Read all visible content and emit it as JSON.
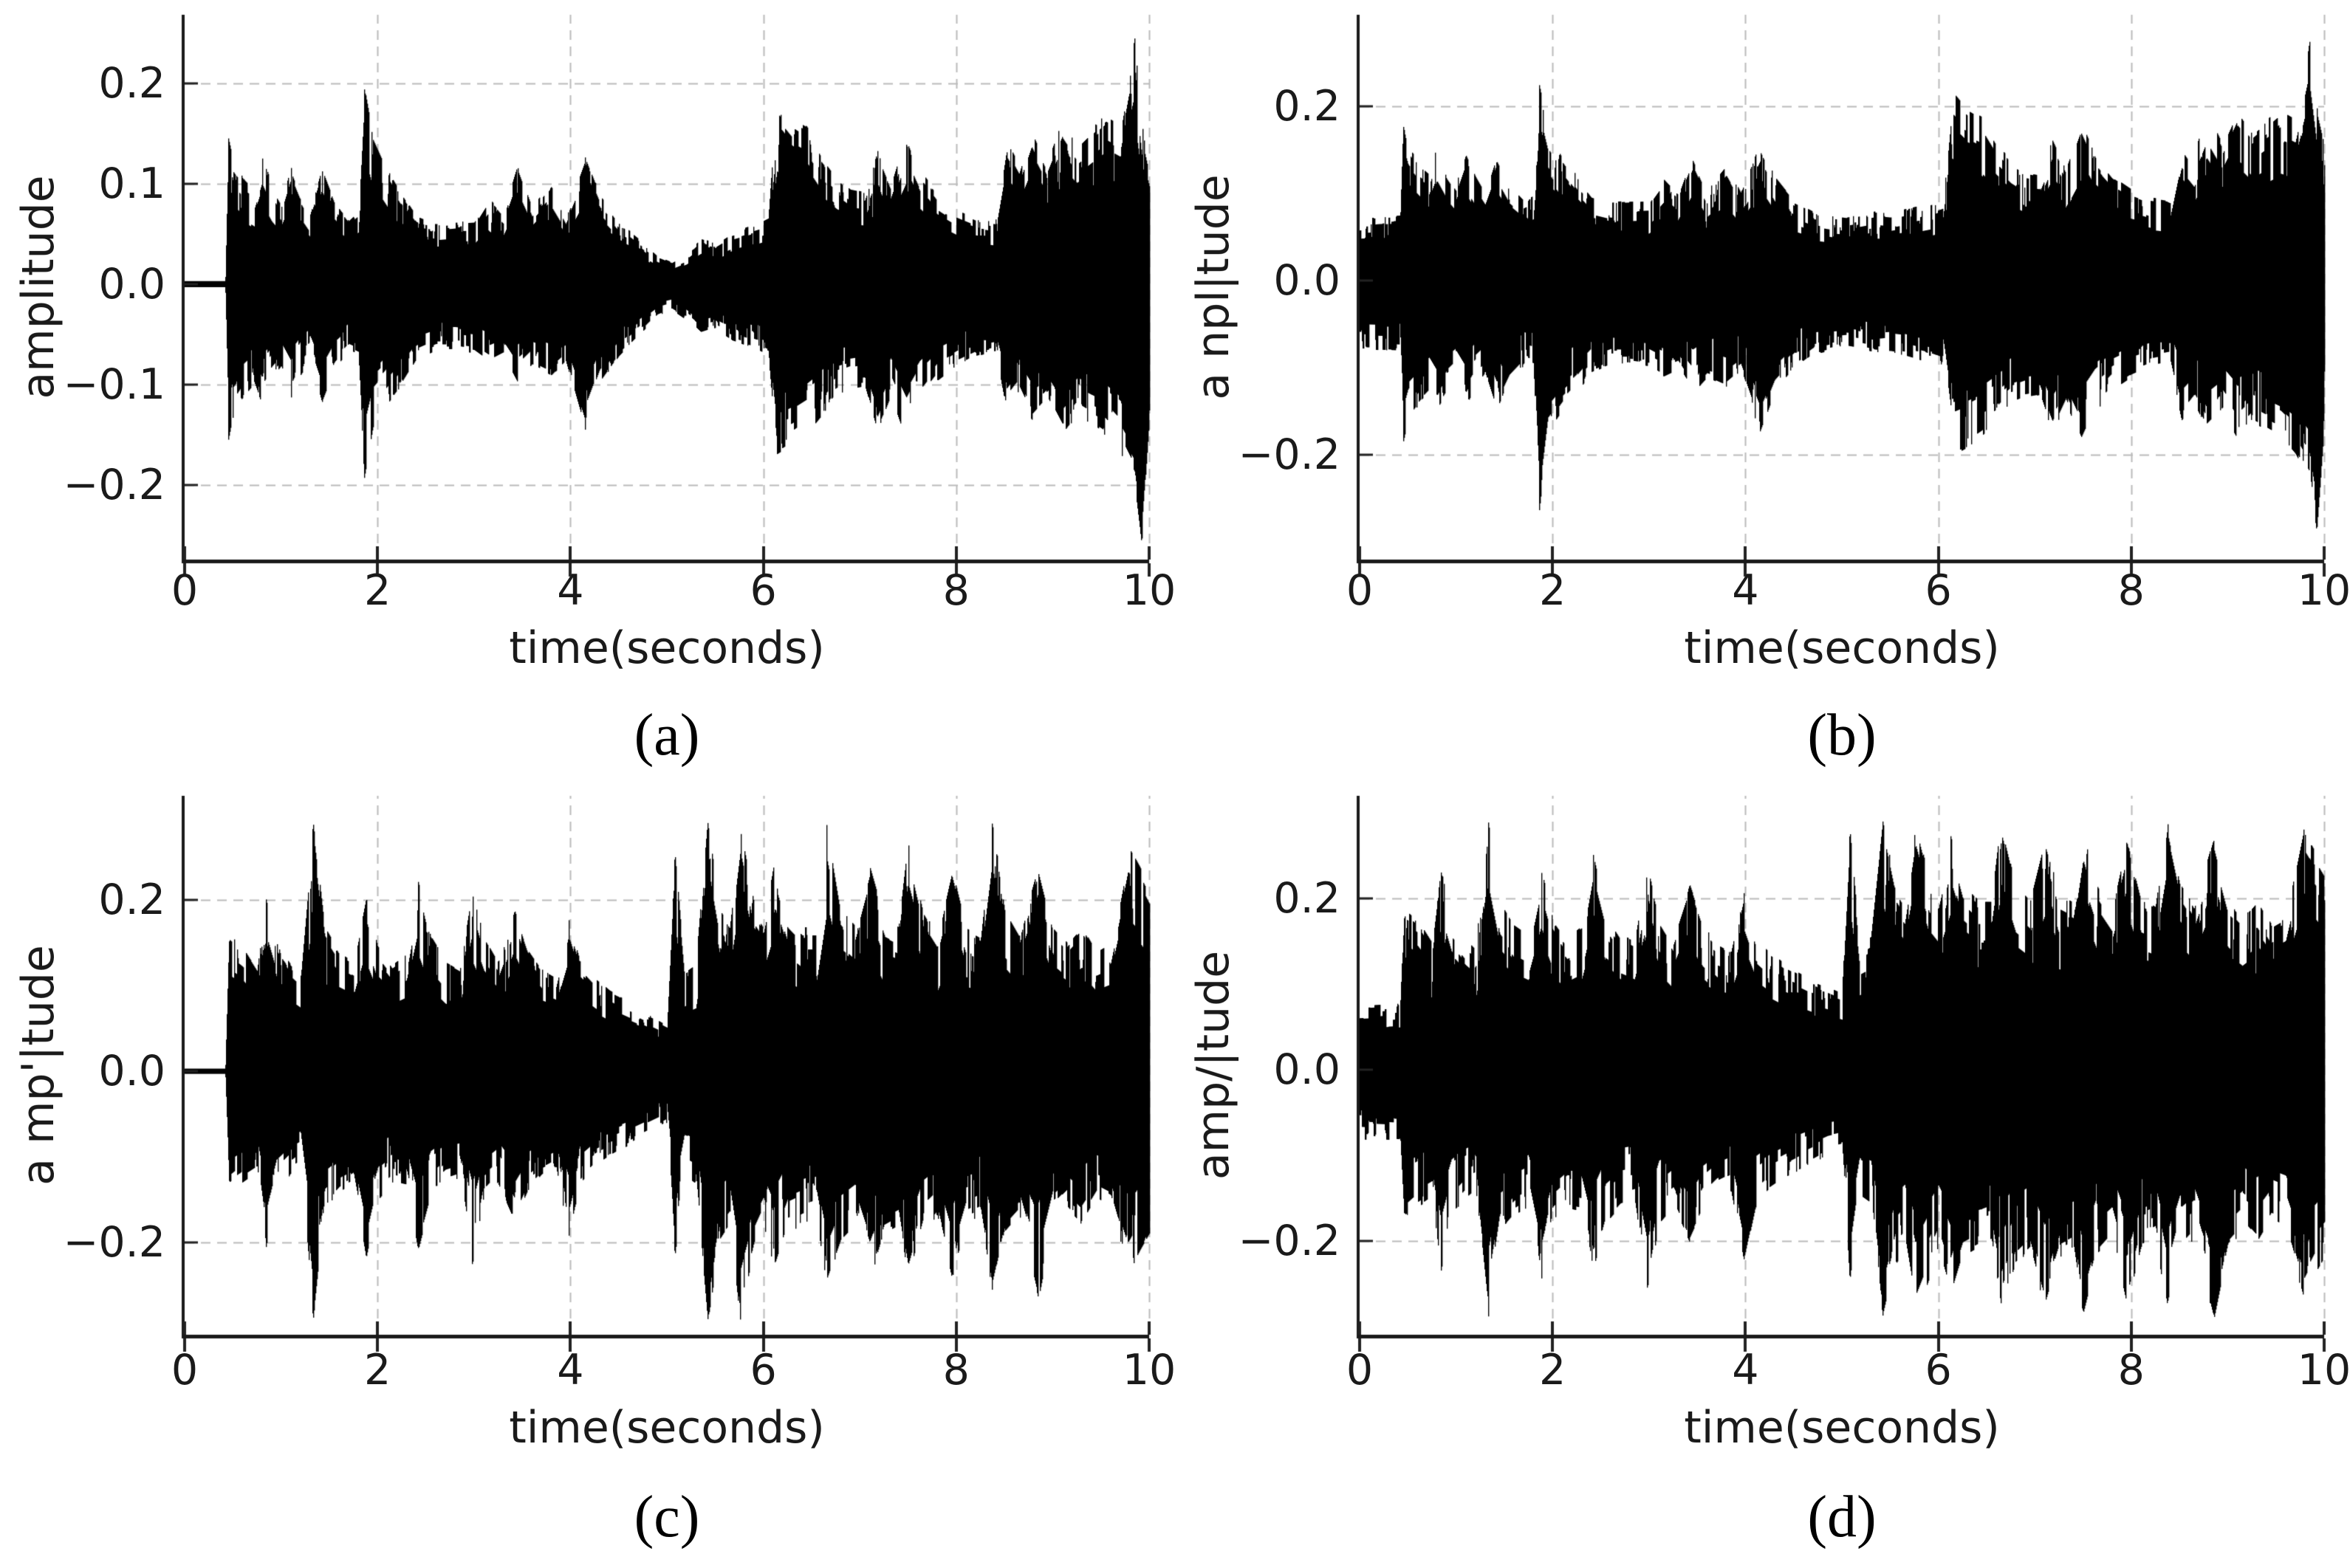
{
  "figure": {
    "background": "#ffffff",
    "rows": 2,
    "cols": 2,
    "description": "2x2 grid of audio waveform plots"
  },
  "chart_data": [
    {
      "id": "a",
      "type": "area",
      "waveform": true,
      "caption": "(a)",
      "xlabel": "time(seconds)",
      "ylabel": "amplitude",
      "xlim": [
        0,
        10
      ],
      "ylim": [
        -0.274,
        0.268
      ],
      "xticks": {
        "values": [
          0,
          2,
          4,
          6,
          8,
          10
        ],
        "labels": [
          "0",
          "2",
          "4",
          "6",
          "8",
          "10"
        ]
      },
      "yticks": {
        "values": [
          0.2,
          0.1,
          0.0,
          -0.1,
          -0.2
        ],
        "labels": [
          "0.2",
          "0.1",
          "0.0",
          "−0.1",
          "−0.2"
        ]
      },
      "grid": true,
      "legend": "none",
      "line_color": "#000000",
      "grid_color": "#bbbbbb",
      "envelope": {
        "t": [
          0,
          0.42,
          0.45,
          0.5,
          0.62,
          0.72,
          0.8,
          0.9,
          1.0,
          1.1,
          1.2,
          1.3,
          1.42,
          1.55,
          1.7,
          1.8,
          1.86,
          1.95,
          2.1,
          2.25,
          2.4,
          2.6,
          2.8,
          3.0,
          3.15,
          3.3,
          3.45,
          3.6,
          3.8,
          3.95,
          4.15,
          4.3,
          4.5,
          4.7,
          4.9,
          5.05,
          5.2,
          5.35,
          5.5,
          5.65,
          5.8,
          5.95,
          6.05,
          6.14,
          6.3,
          6.45,
          6.6,
          6.75,
          6.9,
          7.05,
          7.18,
          7.32,
          7.48,
          7.62,
          7.8,
          8.0,
          8.2,
          8.4,
          8.52,
          8.65,
          8.78,
          8.95,
          9.1,
          9.25,
          9.4,
          9.55,
          9.7,
          9.85,
          9.92,
          10
        ],
        "hi": [
          0.003,
          0.003,
          0.148,
          0.125,
          0.105,
          0.095,
          0.128,
          0.1,
          0.082,
          0.118,
          0.092,
          0.072,
          0.115,
          0.082,
          0.063,
          0.072,
          0.197,
          0.148,
          0.115,
          0.09,
          0.068,
          0.06,
          0.062,
          0.063,
          0.088,
          0.07,
          0.118,
          0.077,
          0.105,
          0.072,
          0.128,
          0.09,
          0.062,
          0.046,
          0.028,
          0.022,
          0.031,
          0.046,
          0.041,
          0.051,
          0.056,
          0.061,
          0.066,
          0.19,
          0.168,
          0.158,
          0.128,
          0.108,
          0.095,
          0.092,
          0.135,
          0.1,
          0.152,
          0.115,
          0.09,
          0.075,
          0.066,
          0.062,
          0.145,
          0.12,
          0.165,
          0.125,
          0.165,
          0.14,
          0.155,
          0.17,
          0.16,
          0.25,
          0.17,
          0.13
        ],
        "lo": [
          0.003,
          0.003,
          0.158,
          0.132,
          0.112,
          0.1,
          0.122,
          0.102,
          0.088,
          0.115,
          0.092,
          0.077,
          0.12,
          0.087,
          0.067,
          0.072,
          0.196,
          0.145,
          0.12,
          0.1,
          0.076,
          0.066,
          0.066,
          0.069,
          0.08,
          0.072,
          0.1,
          0.082,
          0.092,
          0.077,
          0.147,
          0.1,
          0.072,
          0.052,
          0.032,
          0.026,
          0.036,
          0.051,
          0.046,
          0.056,
          0.061,
          0.066,
          0.071,
          0.172,
          0.162,
          0.15,
          0.132,
          0.112,
          0.105,
          0.102,
          0.147,
          0.112,
          0.157,
          0.122,
          0.097,
          0.082,
          0.072,
          0.067,
          0.132,
          0.112,
          0.142,
          0.122,
          0.152,
          0.132,
          0.142,
          0.152,
          0.172,
          0.205,
          0.262,
          0.142
        ]
      }
    },
    {
      "id": "b",
      "type": "area",
      "waveform": true,
      "caption": "(b)",
      "xlabel": "time(seconds)",
      "ylabel": "a npl|tude",
      "xlim": [
        0,
        10
      ],
      "ylim": [
        -0.32,
        0.305
      ],
      "xticks": {
        "values": [
          0,
          2,
          4,
          6,
          8,
          10
        ],
        "labels": [
          "0",
          "2",
          "4",
          "6",
          "8",
          "10"
        ]
      },
      "yticks": {
        "values": [
          0.2,
          0.0,
          -0.2
        ],
        "labels": [
          "0.2",
          "0.0",
          "−0.2"
        ]
      },
      "grid": true,
      "legend": "none",
      "line_color": "#000000",
      "grid_color": "#bbbbbb",
      "envelope": {
        "t": [
          0,
          0.42,
          0.45,
          0.5,
          0.62,
          0.72,
          0.8,
          0.9,
          1.0,
          1.1,
          1.2,
          1.3,
          1.42,
          1.55,
          1.7,
          1.8,
          1.86,
          1.95,
          2.1,
          2.25,
          2.4,
          2.6,
          2.8,
          3.0,
          3.15,
          3.3,
          3.45,
          3.6,
          3.8,
          3.95,
          4.15,
          4.3,
          4.5,
          4.7,
          4.9,
          5.05,
          5.2,
          5.35,
          5.5,
          5.65,
          5.8,
          5.95,
          6.05,
          6.14,
          6.3,
          6.45,
          6.6,
          6.75,
          6.9,
          7.05,
          7.18,
          7.32,
          7.48,
          7.62,
          7.8,
          8.0,
          8.2,
          8.4,
          8.52,
          8.65,
          8.78,
          8.95,
          9.1,
          9.25,
          9.4,
          9.55,
          9.7,
          9.85,
          9.92,
          10
        ],
        "hi": [
          0.072,
          0.075,
          0.178,
          0.155,
          0.135,
          0.125,
          0.158,
          0.13,
          0.112,
          0.148,
          0.122,
          0.102,
          0.145,
          0.112,
          0.094,
          0.1,
          0.228,
          0.178,
          0.145,
          0.12,
          0.098,
          0.091,
          0.092,
          0.093,
          0.118,
          0.1,
          0.148,
          0.107,
          0.135,
          0.102,
          0.158,
          0.12,
          0.092,
          0.08,
          0.075,
          0.073,
          0.076,
          0.08,
          0.078,
          0.082,
          0.086,
          0.091,
          0.096,
          0.22,
          0.198,
          0.188,
          0.158,
          0.138,
          0.125,
          0.122,
          0.165,
          0.13,
          0.182,
          0.145,
          0.12,
          0.105,
          0.096,
          0.092,
          0.175,
          0.15,
          0.195,
          0.155,
          0.195,
          0.17,
          0.185,
          0.2,
          0.19,
          0.28,
          0.2,
          0.16
        ],
        "lo": [
          0.08,
          0.082,
          0.188,
          0.162,
          0.142,
          0.13,
          0.152,
          0.132,
          0.118,
          0.145,
          0.122,
          0.107,
          0.15,
          0.117,
          0.098,
          0.102,
          0.268,
          0.175,
          0.15,
          0.13,
          0.106,
          0.096,
          0.096,
          0.099,
          0.11,
          0.102,
          0.13,
          0.112,
          0.122,
          0.107,
          0.177,
          0.13,
          0.102,
          0.085,
          0.08,
          0.078,
          0.081,
          0.085,
          0.083,
          0.086,
          0.091,
          0.096,
          0.101,
          0.202,
          0.192,
          0.18,
          0.162,
          0.142,
          0.135,
          0.132,
          0.177,
          0.142,
          0.187,
          0.152,
          0.127,
          0.112,
          0.102,
          0.097,
          0.162,
          0.142,
          0.172,
          0.152,
          0.182,
          0.162,
          0.172,
          0.182,
          0.202,
          0.235,
          0.292,
          0.172
        ]
      }
    },
    {
      "id": "c",
      "type": "area",
      "waveform": true,
      "caption": "(c)",
      "xlabel": "time(seconds)",
      "ylabel": "a mp'|tude",
      "xlim": [
        0,
        10
      ],
      "ylim": [
        -0.308,
        0.322
      ],
      "xticks": {
        "values": [
          0,
          2,
          4,
          6,
          8,
          10
        ],
        "labels": [
          "0",
          "2",
          "4",
          "6",
          "8",
          "10"
        ]
      },
      "yticks": {
        "values": [
          0.2,
          0.0,
          -0.2
        ],
        "labels": [
          "0.2",
          "0.0",
          "−0.2"
        ]
      },
      "grid": true,
      "legend": "none",
      "line_color": "#000000",
      "grid_color": "#bbbbbb",
      "envelope": {
        "t": [
          0,
          0.42,
          0.46,
          0.6,
          0.75,
          0.84,
          0.95,
          1.1,
          1.2,
          1.33,
          1.45,
          1.6,
          1.75,
          1.88,
          2.0,
          2.15,
          2.3,
          2.42,
          2.55,
          2.7,
          2.85,
          2.98,
          3.1,
          3.25,
          3.42,
          3.55,
          3.7,
          3.85,
          3.98,
          4.1,
          4.25,
          4.4,
          4.55,
          4.7,
          4.85,
          5.0,
          5.08,
          5.18,
          5.3,
          5.42,
          5.55,
          5.65,
          5.76,
          5.9,
          6.0,
          6.12,
          6.25,
          6.4,
          6.55,
          6.65,
          6.8,
          6.95,
          7.1,
          7.25,
          7.4,
          7.5,
          7.65,
          7.8,
          7.95,
          8.1,
          8.25,
          8.37,
          8.5,
          8.65,
          8.85,
          9.0,
          9.15,
          9.3,
          9.45,
          9.6,
          9.78,
          9.9,
          10
        ],
        "hi": [
          0.003,
          0.003,
          0.16,
          0.145,
          0.118,
          0.205,
          0.15,
          0.125,
          0.113,
          0.295,
          0.17,
          0.14,
          0.128,
          0.205,
          0.15,
          0.125,
          0.138,
          0.225,
          0.158,
          0.13,
          0.12,
          0.21,
          0.158,
          0.128,
          0.19,
          0.145,
          0.12,
          0.11,
          0.18,
          0.13,
          0.11,
          0.095,
          0.085,
          0.075,
          0.065,
          0.055,
          0.26,
          0.12,
          0.13,
          0.295,
          0.19,
          0.17,
          0.285,
          0.2,
          0.18,
          0.25,
          0.19,
          0.17,
          0.17,
          0.295,
          0.19,
          0.17,
          0.24,
          0.18,
          0.17,
          0.27,
          0.19,
          0.16,
          0.24,
          0.17,
          0.16,
          0.295,
          0.19,
          0.16,
          0.24,
          0.17,
          0.15,
          0.17,
          0.14,
          0.15,
          0.27,
          0.245,
          0.22
        ],
        "lo": [
          0.003,
          0.003,
          0.148,
          0.132,
          0.12,
          0.21,
          0.142,
          0.12,
          0.11,
          0.295,
          0.162,
          0.142,
          0.13,
          0.22,
          0.152,
          0.132,
          0.136,
          0.21,
          0.152,
          0.132,
          0.126,
          0.23,
          0.152,
          0.132,
          0.176,
          0.142,
          0.122,
          0.112,
          0.196,
          0.132,
          0.112,
          0.1,
          0.09,
          0.08,
          0.07,
          0.06,
          0.22,
          0.122,
          0.132,
          0.295,
          0.2,
          0.182,
          0.295,
          0.22,
          0.19,
          0.24,
          0.19,
          0.18,
          0.172,
          0.25,
          0.2,
          0.182,
          0.25,
          0.19,
          0.18,
          0.26,
          0.19,
          0.17,
          0.25,
          0.18,
          0.17,
          0.26,
          0.19,
          0.17,
          0.27,
          0.18,
          0.16,
          0.18,
          0.15,
          0.16,
          0.24,
          0.21,
          0.19
        ]
      }
    },
    {
      "id": "d",
      "type": "area",
      "waveform": true,
      "caption": "(d)",
      "xlabel": "time(seconds)",
      "ylabel": "amp/|tude",
      "xlim": [
        0,
        10
      ],
      "ylim": [
        -0.31,
        0.32
      ],
      "xticks": {
        "values": [
          0,
          2,
          4,
          6,
          8,
          10
        ],
        "labels": [
          "0",
          "2",
          "4",
          "6",
          "8",
          "10"
        ]
      },
      "yticks": {
        "values": [
          0.2,
          0.0,
          -0.2
        ],
        "labels": [
          "0.2",
          "0.0",
          "−0.2"
        ]
      },
      "grid": true,
      "legend": "none",
      "line_color": "#000000",
      "grid_color": "#bbbbbb",
      "envelope": {
        "t": [
          0,
          0.42,
          0.46,
          0.6,
          0.75,
          0.84,
          0.95,
          1.1,
          1.2,
          1.33,
          1.45,
          1.6,
          1.75,
          1.88,
          2.0,
          2.15,
          2.3,
          2.42,
          2.55,
          2.7,
          2.85,
          2.98,
          3.1,
          3.25,
          3.42,
          3.55,
          3.7,
          3.85,
          3.98,
          4.1,
          4.25,
          4.4,
          4.55,
          4.7,
          4.85,
          5.0,
          5.08,
          5.18,
          5.3,
          5.42,
          5.55,
          5.65,
          5.76,
          5.9,
          6.0,
          6.12,
          6.25,
          6.4,
          6.55,
          6.65,
          6.8,
          6.95,
          7.1,
          7.25,
          7.4,
          7.5,
          7.65,
          7.8,
          7.95,
          8.1,
          8.25,
          8.37,
          8.5,
          8.65,
          8.85,
          9.0,
          9.15,
          9.3,
          9.45,
          9.6,
          9.78,
          9.9,
          10
        ],
        "hi": [
          0.075,
          0.078,
          0.19,
          0.175,
          0.148,
          0.235,
          0.18,
          0.155,
          0.143,
          0.295,
          0.2,
          0.17,
          0.158,
          0.235,
          0.18,
          0.155,
          0.168,
          0.255,
          0.188,
          0.16,
          0.15,
          0.24,
          0.188,
          0.158,
          0.22,
          0.175,
          0.15,
          0.14,
          0.21,
          0.16,
          0.14,
          0.125,
          0.115,
          0.105,
          0.098,
          0.09,
          0.285,
          0.15,
          0.16,
          0.295,
          0.22,
          0.2,
          0.295,
          0.23,
          0.21,
          0.28,
          0.22,
          0.2,
          0.2,
          0.295,
          0.22,
          0.2,
          0.27,
          0.21,
          0.2,
          0.29,
          0.22,
          0.19,
          0.27,
          0.2,
          0.19,
          0.295,
          0.22,
          0.19,
          0.27,
          0.2,
          0.18,
          0.2,
          0.17,
          0.18,
          0.285,
          0.26,
          0.24
        ],
        "lo": [
          0.082,
          0.085,
          0.178,
          0.162,
          0.15,
          0.24,
          0.172,
          0.15,
          0.14,
          0.295,
          0.192,
          0.172,
          0.16,
          0.25,
          0.182,
          0.162,
          0.166,
          0.24,
          0.182,
          0.162,
          0.156,
          0.26,
          0.182,
          0.162,
          0.206,
          0.172,
          0.152,
          0.142,
          0.226,
          0.162,
          0.142,
          0.13,
          0.12,
          0.11,
          0.1,
          0.095,
          0.25,
          0.152,
          0.162,
          0.295,
          0.23,
          0.212,
          0.295,
          0.25,
          0.22,
          0.27,
          0.22,
          0.21,
          0.202,
          0.28,
          0.23,
          0.212,
          0.28,
          0.22,
          0.21,
          0.29,
          0.22,
          0.2,
          0.28,
          0.21,
          0.2,
          0.29,
          0.22,
          0.2,
          0.295,
          0.21,
          0.19,
          0.21,
          0.18,
          0.19,
          0.27,
          0.24,
          0.22
        ]
      }
    }
  ]
}
